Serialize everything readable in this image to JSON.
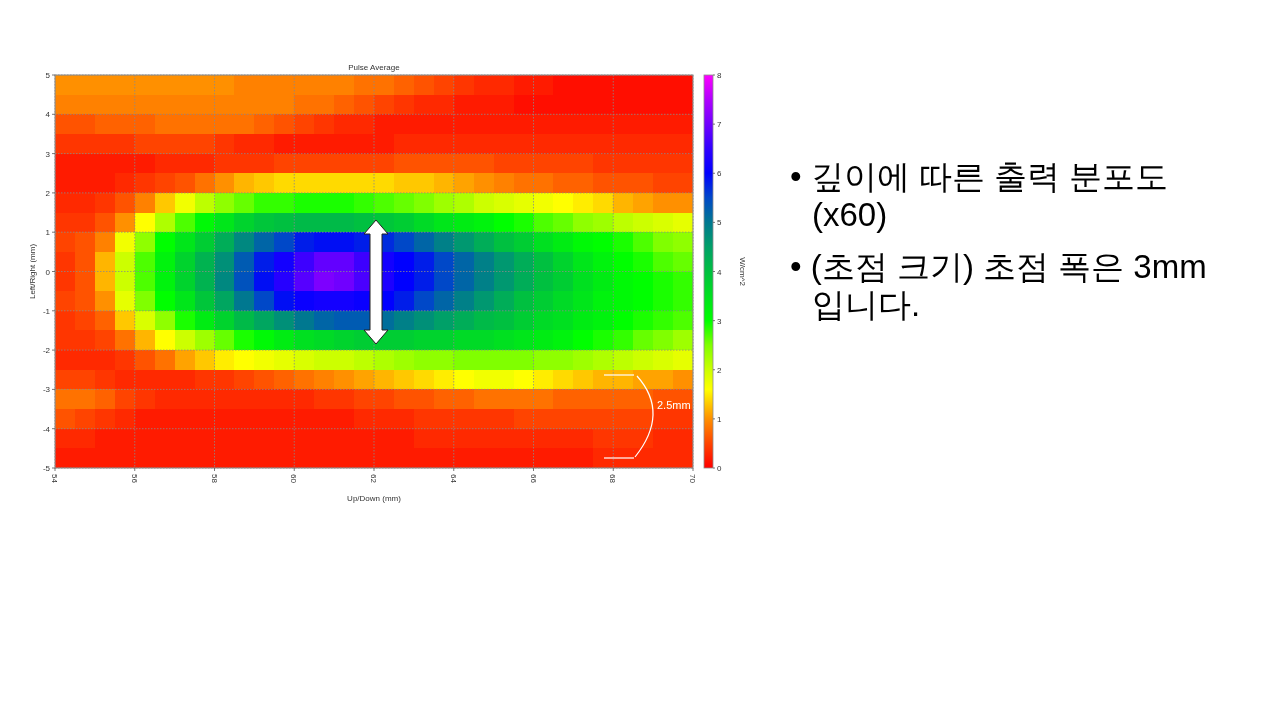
{
  "chart_data": {
    "type": "heatmap",
    "title": "Pulse Average",
    "xlabel": "Up/Down (mm)",
    "ylabel": "Left/Right (mm)",
    "clabel": "W/cm^2",
    "xlim": [
      54,
      70
    ],
    "xticks": [
      54,
      56,
      58,
      60,
      62,
      64,
      66,
      68,
      70
    ],
    "ylim": [
      -5,
      5
    ],
    "yticks": [
      -5,
      -4,
      -3,
      -2,
      -1,
      0,
      1,
      2,
      3,
      4,
      5
    ],
    "clim": [
      0,
      8
    ],
    "cticks": [
      0,
      1,
      2,
      3,
      4,
      5,
      6,
      7,
      8
    ],
    "grid": true,
    "cells": [
      [
        1.0,
        1.0,
        1.0,
        1.0,
        1.0,
        1.0,
        1.0,
        1.0,
        1.0,
        0.9,
        0.9,
        0.9,
        0.9,
        0.9,
        0.9,
        0.8,
        0.8,
        0.7,
        0.6,
        0.5,
        0.4,
        0.3,
        0.3,
        0.2,
        0.2,
        0.1,
        0.1,
        0.1,
        0.1,
        0.1,
        0.1,
        0.1
      ],
      [
        0.9,
        0.9,
        0.9,
        0.9,
        0.9,
        0.9,
        0.9,
        0.9,
        0.9,
        0.9,
        0.9,
        0.9,
        0.8,
        0.8,
        0.7,
        0.6,
        0.5,
        0.4,
        0.3,
        0.3,
        0.2,
        0.2,
        0.2,
        0.1,
        0.1,
        0.1,
        0.1,
        0.1,
        0.1,
        0.1,
        0.1,
        0.1
      ],
      [
        0.6,
        0.6,
        0.7,
        0.7,
        0.7,
        0.8,
        0.8,
        0.8,
        0.8,
        0.8,
        0.7,
        0.6,
        0.5,
        0.4,
        0.3,
        0.3,
        0.2,
        0.2,
        0.2,
        0.2,
        0.2,
        0.2,
        0.2,
        0.2,
        0.2,
        0.2,
        0.2,
        0.2,
        0.2,
        0.2,
        0.2,
        0.2
      ],
      [
        0.4,
        0.4,
        0.4,
        0.4,
        0.5,
        0.5,
        0.5,
        0.5,
        0.4,
        0.3,
        0.3,
        0.2,
        0.2,
        0.2,
        0.2,
        0.2,
        0.2,
        0.3,
        0.3,
        0.3,
        0.3,
        0.3,
        0.3,
        0.3,
        0.3,
        0.3,
        0.3,
        0.3,
        0.3,
        0.3,
        0.3,
        0.3
      ],
      [
        0.2,
        0.2,
        0.2,
        0.2,
        0.2,
        0.3,
        0.3,
        0.3,
        0.4,
        0.4,
        0.4,
        0.5,
        0.5,
        0.5,
        0.5,
        0.5,
        0.5,
        0.6,
        0.6,
        0.6,
        0.6,
        0.6,
        0.5,
        0.5,
        0.5,
        0.5,
        0.5,
        0.4,
        0.4,
        0.4,
        0.4,
        0.4
      ],
      [
        0.2,
        0.2,
        0.2,
        0.3,
        0.4,
        0.5,
        0.6,
        0.8,
        1.0,
        1.2,
        1.3,
        1.4,
        1.4,
        1.4,
        1.4,
        1.4,
        1.4,
        1.3,
        1.3,
        1.2,
        1.1,
        1.0,
        0.9,
        0.8,
        0.8,
        0.7,
        0.7,
        0.6,
        0.6,
        0.6,
        0.5,
        0.5
      ],
      [
        0.3,
        0.3,
        0.4,
        0.6,
        0.9,
        1.3,
        1.7,
        2.1,
        2.4,
        2.6,
        2.8,
        2.8,
        2.9,
        2.9,
        2.9,
        2.8,
        2.7,
        2.6,
        2.5,
        2.3,
        2.2,
        2.0,
        1.9,
        1.8,
        1.7,
        1.6,
        1.5,
        1.4,
        1.2,
        1.1,
        1.0,
        1.0
      ],
      [
        0.4,
        0.4,
        0.6,
        1.0,
        1.6,
        2.2,
        2.7,
        3.1,
        3.4,
        3.7,
        3.9,
        4.0,
        4.1,
        4.1,
        4.1,
        4.0,
        3.9,
        3.8,
        3.6,
        3.4,
        3.3,
        3.2,
        3.0,
        2.9,
        2.7,
        2.6,
        2.4,
        2.3,
        2.1,
        2.0,
        1.9,
        1.8
      ],
      [
        0.5,
        0.6,
        0.9,
        1.7,
        2.4,
        3.0,
        3.4,
        3.8,
        4.3,
        4.8,
        5.2,
        5.5,
        5.8,
        5.9,
        5.9,
        5.8,
        5.7,
        5.5,
        5.2,
        4.9,
        4.6,
        4.3,
        4.0,
        3.8,
        3.5,
        3.3,
        3.1,
        3.0,
        2.9,
        2.7,
        2.5,
        2.4
      ],
      [
        0.4,
        0.6,
        1.2,
        2.0,
        2.7,
        3.2,
        3.7,
        4.2,
        4.7,
        5.3,
        5.8,
        6.2,
        6.6,
        6.9,
        6.9,
        6.6,
        6.2,
        6.0,
        5.8,
        5.5,
        5.2,
        4.9,
        4.6,
        4.3,
        4.0,
        3.7,
        3.4,
        3.2,
        3.0,
        2.9,
        2.7,
        2.6
      ],
      [
        0.4,
        0.6,
        1.2,
        2.0,
        2.7,
        3.2,
        3.7,
        4.2,
        4.8,
        5.4,
        5.9,
        6.4,
        6.8,
        7.1,
        7.0,
        6.7,
        6.3,
        6.0,
        5.8,
        5.5,
        5.2,
        4.9,
        4.6,
        4.3,
        4.0,
        3.8,
        3.5,
        3.3,
        3.1,
        3.0,
        2.9,
        2.8
      ],
      [
        0.5,
        0.6,
        1.0,
        1.8,
        2.5,
        3.0,
        3.4,
        3.9,
        4.4,
        5.0,
        5.5,
        5.9,
        6.1,
        6.2,
        6.2,
        6.1,
        6.0,
        5.8,
        5.5,
        5.2,
        4.9,
        4.6,
        4.3,
        4.0,
        3.8,
        3.6,
        3.4,
        3.2,
        3.1,
        3.0,
        2.9,
        2.8
      ],
      [
        0.4,
        0.5,
        0.7,
        1.3,
        1.9,
        2.4,
        2.9,
        3.3,
        3.7,
        4.1,
        4.4,
        4.7,
        5.0,
        5.2,
        5.3,
        5.3,
        5.1,
        4.9,
        4.7,
        4.5,
        4.3,
        4.1,
        4.0,
        3.8,
        3.6,
        3.5,
        3.3,
        3.2,
        3.0,
        2.9,
        2.8,
        2.7
      ],
      [
        0.4,
        0.4,
        0.5,
        0.8,
        1.2,
        1.6,
        2.0,
        2.3,
        2.6,
        2.9,
        3.1,
        3.3,
        3.5,
        3.6,
        3.7,
        3.8,
        3.8,
        3.8,
        3.7,
        3.7,
        3.6,
        3.6,
        3.5,
        3.4,
        3.3,
        3.2,
        3.0,
        2.9,
        2.8,
        2.6,
        2.5,
        2.3
      ],
      [
        0.3,
        0.3,
        0.3,
        0.4,
        0.6,
        0.8,
        1.1,
        1.3,
        1.5,
        1.6,
        1.7,
        1.8,
        1.9,
        2.0,
        2.0,
        2.1,
        2.2,
        2.3,
        2.4,
        2.4,
        2.5,
        2.5,
        2.5,
        2.5,
        2.4,
        2.4,
        2.3,
        2.2,
        2.1,
        2.0,
        1.9,
        1.8
      ],
      [
        0.5,
        0.5,
        0.4,
        0.3,
        0.3,
        0.3,
        0.3,
        0.4,
        0.4,
        0.5,
        0.6,
        0.7,
        0.8,
        0.9,
        1.0,
        1.1,
        1.2,
        1.3,
        1.4,
        1.5,
        1.6,
        1.7,
        1.7,
        1.6,
        1.5,
        1.4,
        1.3,
        1.2,
        1.2,
        1.1,
        1.1,
        1.0
      ],
      [
        0.8,
        0.8,
        0.7,
        0.5,
        0.4,
        0.3,
        0.3,
        0.3,
        0.3,
        0.3,
        0.3,
        0.3,
        0.3,
        0.4,
        0.4,
        0.5,
        0.5,
        0.6,
        0.6,
        0.7,
        0.7,
        0.8,
        0.8,
        0.8,
        0.8,
        0.7,
        0.7,
        0.7,
        0.7,
        0.7,
        0.6,
        0.6
      ],
      [
        0.6,
        0.5,
        0.4,
        0.3,
        0.2,
        0.2,
        0.2,
        0.2,
        0.2,
        0.2,
        0.2,
        0.2,
        0.2,
        0.2,
        0.2,
        0.3,
        0.3,
        0.3,
        0.4,
        0.4,
        0.4,
        0.4,
        0.4,
        0.5,
        0.5,
        0.5,
        0.5,
        0.5,
        0.5,
        0.5,
        0.4,
        0.4
      ],
      [
        0.3,
        0.3,
        0.2,
        0.2,
        0.2,
        0.2,
        0.2,
        0.2,
        0.2,
        0.2,
        0.2,
        0.2,
        0.2,
        0.2,
        0.2,
        0.2,
        0.2,
        0.2,
        0.3,
        0.3,
        0.3,
        0.3,
        0.3,
        0.3,
        0.3,
        0.3,
        0.3,
        0.4,
        0.4,
        0.4,
        0.3,
        0.3
      ],
      [
        0.2,
        0.2,
        0.2,
        0.2,
        0.2,
        0.2,
        0.2,
        0.2,
        0.2,
        0.2,
        0.2,
        0.2,
        0.2,
        0.2,
        0.2,
        0.2,
        0.2,
        0.2,
        0.2,
        0.2,
        0.2,
        0.2,
        0.2,
        0.2,
        0.2,
        0.2,
        0.2,
        0.3,
        0.3,
        0.3,
        0.3,
        0.3
      ]
    ],
    "annotations": [
      "2.5mm",
      "• 깊이에 따른 출력 분포도 (x60)",
      "• (초점 크기) 초점 폭은 3mm 입니다."
    ]
  }
}
